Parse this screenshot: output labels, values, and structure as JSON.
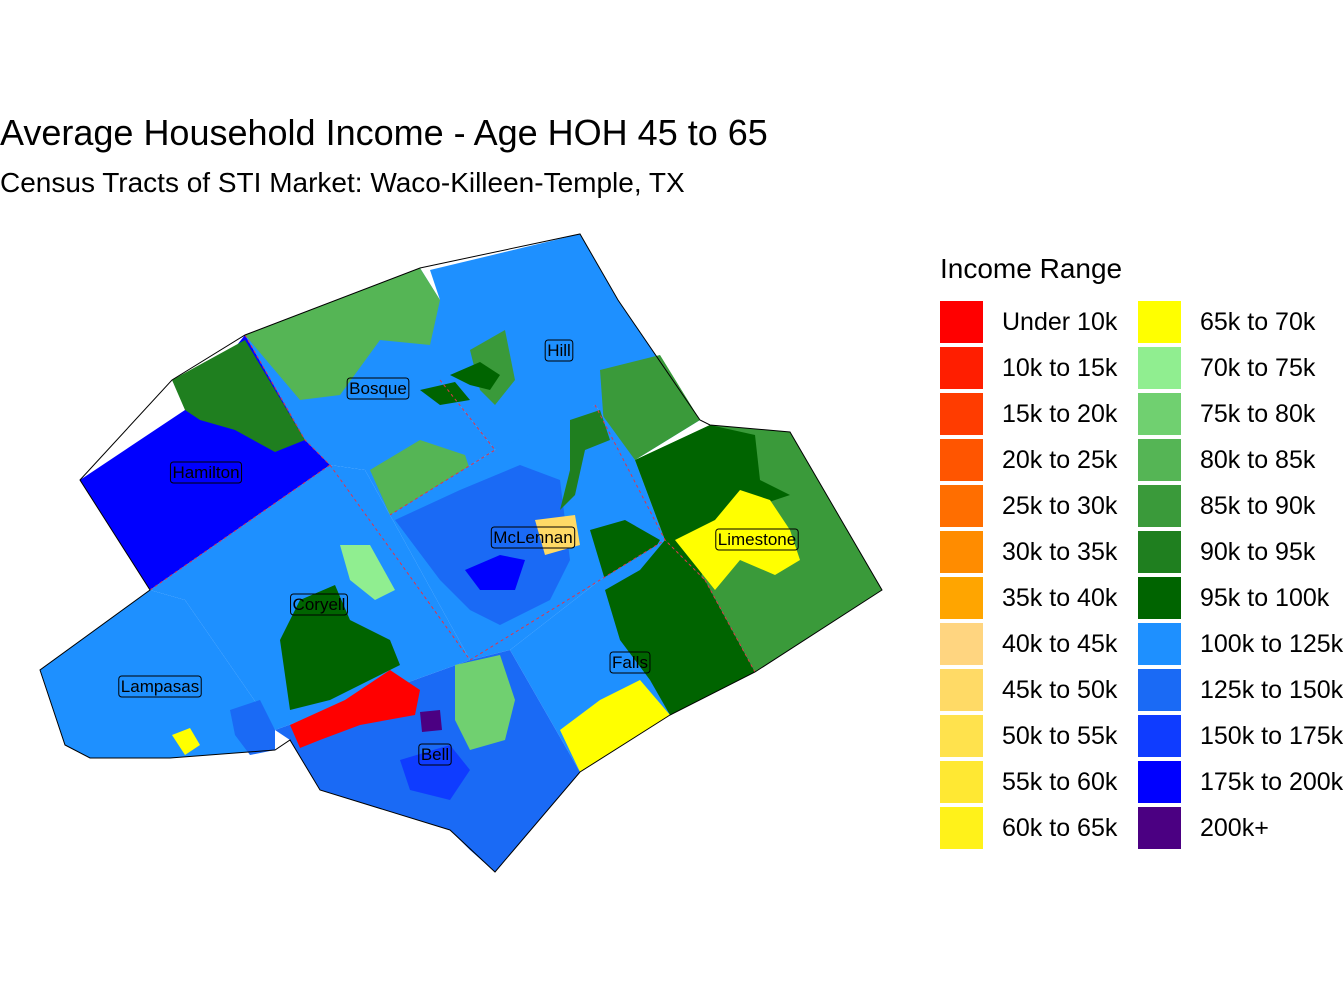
{
  "title": "Average Household Income - Age HOH 45 to 65",
  "subtitle": "Census Tracts of STI Market: Waco-Killeen-Temple, TX",
  "legend": {
    "title": "Income Range",
    "items": [
      {
        "label": "Under 10k",
        "color": "#FF0000"
      },
      {
        "label": "10k to 15k",
        "color": "#FF1E00"
      },
      {
        "label": "15k to 20k",
        "color": "#FF3C00"
      },
      {
        "label": "20k to 25k",
        "color": "#FF5500"
      },
      {
        "label": "25k to 30k",
        "color": "#FF6E00"
      },
      {
        "label": "30k to 35k",
        "color": "#FF8C00"
      },
      {
        "label": "35k to 40k",
        "color": "#FFA500"
      },
      {
        "label": "40k to 45k",
        "color": "#FFD580"
      },
      {
        "label": "45k to 50k",
        "color": "#FFDA66"
      },
      {
        "label": "50k to 55k",
        "color": "#FFE24D"
      },
      {
        "label": "55k to 60k",
        "color": "#FFE833"
      },
      {
        "label": "60k to 65k",
        "color": "#FFF21A"
      },
      {
        "label": "65k to 70k",
        "color": "#FFFF00"
      },
      {
        "label": "70k to 75k",
        "color": "#90EE90"
      },
      {
        "label": "75k to 80k",
        "color": "#70D070"
      },
      {
        "label": "80k to 85k",
        "color": "#55B555"
      },
      {
        "label": "85k to 90k",
        "color": "#3A9A3A"
      },
      {
        "label": "90k to 95k",
        "color": "#1F7F1F"
      },
      {
        "label": "95k to 100k",
        "color": "#006400"
      },
      {
        "label": "100k to 125k",
        "color": "#1E90FF"
      },
      {
        "label": "125k to 150k",
        "color": "#1A6AF5"
      },
      {
        "label": "150k to 175k",
        "color": "#0F3CFF"
      },
      {
        "label": "175k to 200k",
        "color": "#0000FF"
      },
      {
        "label": "200k+",
        "color": "#4B0082"
      }
    ]
  },
  "counties": [
    {
      "name": "Hill"
    },
    {
      "name": "Bosque"
    },
    {
      "name": "Hamilton"
    },
    {
      "name": "McLennan"
    },
    {
      "name": "Limestone"
    },
    {
      "name": "Coryell"
    },
    {
      "name": "Lampasas"
    },
    {
      "name": "Falls"
    },
    {
      "name": "Bell"
    }
  ]
}
